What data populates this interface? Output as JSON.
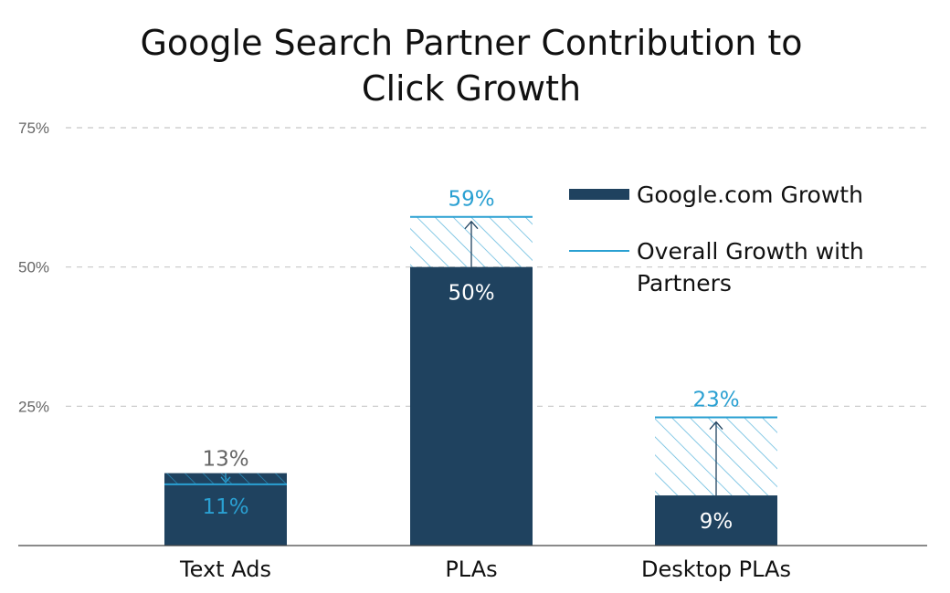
{
  "chart_data": {
    "type": "bar",
    "title_lines": [
      "Google Search Partner Contribution to",
      "Click Growth"
    ],
    "categories": [
      "Text Ads",
      "PLAs",
      "Desktop PLAs"
    ],
    "series": [
      {
        "name": "Google.com Growth",
        "values": [
          13,
          50,
          9
        ]
      },
      {
        "name": "Overall Growth with Partners",
        "values": [
          11,
          59,
          23
        ]
      }
    ],
    "labels": {
      "google": [
        "13%",
        "50%",
        "9%"
      ],
      "overall": [
        "11%",
        "59%",
        "23%"
      ]
    },
    "yticks": [
      25,
      50,
      75
    ],
    "ytick_labels": [
      "25%",
      "50%",
      "75%"
    ],
    "ylim": [
      0,
      75
    ],
    "grid": true,
    "legend_position": "top-right",
    "legend_lines": [
      [
        "Google.com Growth"
      ],
      [
        "Overall Growth with",
        "Partners"
      ]
    ],
    "colors": {
      "google": "#1f425f",
      "overall": "#2aa0d2",
      "grid": "#c8c8c8",
      "axis": "#444444",
      "gray_label": "#666666"
    }
  }
}
